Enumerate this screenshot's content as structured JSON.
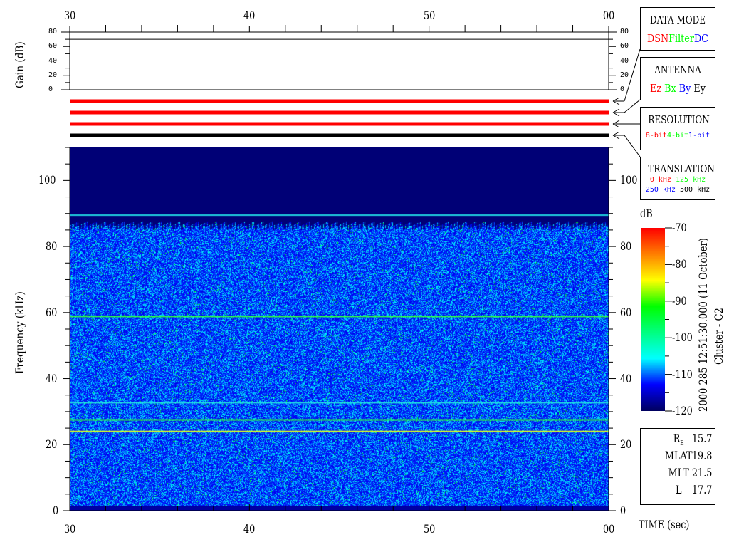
{
  "chart_data": {
    "type": "heatmap",
    "title": "",
    "x_ticks": [
      "30",
      "40",
      "50",
      "00"
    ],
    "x_range_sec": [
      30,
      60
    ],
    "xlabel": "TIME (sec)",
    "gain_panel": {
      "ylabel": "Gain (dB)",
      "y_ticks": [
        "80",
        "60",
        "40",
        "20",
        "0"
      ],
      "ylim": [
        0,
        80
      ],
      "gain_value_db": 70
    },
    "mode_bars": [
      {
        "color": "#ff0000"
      },
      {
        "color": "#ff0000"
      },
      {
        "color": "#ff0000"
      },
      {
        "color": "#000000"
      }
    ],
    "ylabel": "Frequency (kHz)",
    "y_ticks": [
      "0",
      "20",
      "40",
      "60",
      "80",
      "100"
    ],
    "ylim": [
      0,
      110
    ],
    "data_cutoff_khz": 85,
    "emission_lines_khz": [
      {
        "f": 89.5,
        "color": "#20d0e0"
      },
      {
        "f": 58.8,
        "color": "#30ff40"
      },
      {
        "f": 32.7,
        "color": "#20e0e0"
      },
      {
        "f": 27.5,
        "color": "#30ff40"
      },
      {
        "f": 24,
        "color": "#e0ff20"
      }
    ],
    "colorbar": {
      "label": "dB",
      "ticks": [
        "-70",
        "-80",
        "-90",
        "-100",
        "-110",
        "-120"
      ],
      "range": [
        -120,
        -70
      ],
      "colors": [
        "#000060",
        "#0000ff",
        "#00ffff",
        "#00ff80",
        "#00ff00",
        "#ffff00",
        "#ff8000",
        "#ff0000"
      ]
    }
  },
  "side_label": "2000 285 12:51:30.000 (11 October)",
  "spacecraft": "Cluster - C2",
  "legend": {
    "data_mode": {
      "title": "DATA MODE",
      "items": [
        {
          "label": "DSN",
          "color": "#ff0000"
        },
        {
          "label": "Filter",
          "color": "#00ff00"
        },
        {
          "label": "DC",
          "color": "#0000ff"
        }
      ]
    },
    "antenna": {
      "title": "ANTENNA",
      "items": [
        {
          "label": "Ez",
          "color": "#ff0000"
        },
        {
          "label": "Bx",
          "color": "#00ff00"
        },
        {
          "label": "By",
          "color": "#0000ff"
        },
        {
          "label": "Ey",
          "color": "#000000"
        }
      ]
    },
    "resolution": {
      "title": "RESOLUTION",
      "items": [
        {
          "label": "8-bit",
          "color": "#ff0000"
        },
        {
          "label": "4-bit",
          "color": "#00ff00"
        },
        {
          "label": "1-bit",
          "color": "#0000ff"
        }
      ]
    },
    "translation": {
      "title": "TRANSLATION",
      "items": [
        {
          "label": "0 kHz",
          "color": "#ff0000"
        },
        {
          "label": "125 kHz",
          "color": "#00ff00"
        },
        {
          "label": "250 kHz",
          "color": "#0000ff"
        },
        {
          "label": "500 kHz",
          "color": "#000000"
        }
      ]
    }
  },
  "ephemeris": [
    {
      "label": "R",
      "sub": "E",
      "value": "15.7"
    },
    {
      "label": "MLAT",
      "value": "19.8"
    },
    {
      "label": "MLT",
      "value": "21.5"
    },
    {
      "label": "L",
      "value": "17.7"
    }
  ]
}
